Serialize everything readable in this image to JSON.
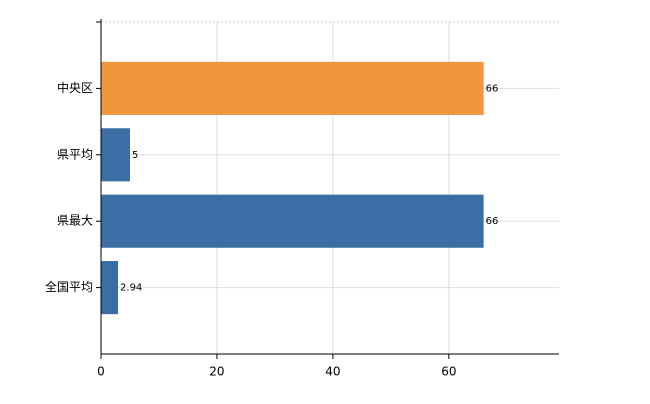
{
  "chart_data": {
    "type": "barh",
    "categories": [
      "中央区",
      "県平均",
      "県最大",
      "全国平均"
    ],
    "values": [
      66,
      5,
      66,
      2.94
    ],
    "colors": [
      "#f0963c",
      "#3a6ea5",
      "#3a6ea5",
      "#3a6ea5"
    ],
    "xlim": [
      0,
      79
    ],
    "xticks": [
      0,
      20,
      40,
      60
    ],
    "grid": true
  }
}
